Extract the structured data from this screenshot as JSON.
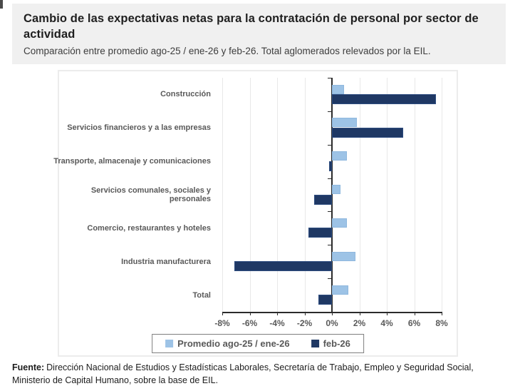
{
  "header": {
    "title": "Cambio de las expectativas netas para la contratación de personal por sector de actividad",
    "subtitle": "Comparación entre promedio ago-25 / ene-26 y feb-26. Total aglomerados relevados por la EIL."
  },
  "chart_data": {
    "type": "bar",
    "orientation": "horizontal",
    "title": "",
    "categories": [
      "Construcción",
      "Servicios financieros y a las empresas",
      "Transporte, almacenaje y comunicaciones",
      "Servicios comunales, sociales y personales",
      "Comercio, restaurantes y hoteles",
      "Industria manufacturera",
      "Total"
    ],
    "series": [
      {
        "name": "Promedio ago-25 / ene-26",
        "color": "#9DC3E6",
        "values": [
          0.9,
          1.8,
          1.1,
          0.6,
          1.1,
          1.7,
          1.2
        ]
      },
      {
        "name": "feb-26",
        "color": "#1F3864",
        "values": [
          7.6,
          5.2,
          -0.2,
          -1.3,
          -1.7,
          -7.1,
          -1.0
        ]
      }
    ],
    "xlim": [
      -8,
      8
    ],
    "xticks": [
      -8,
      -6,
      -4,
      -2,
      0,
      2,
      4,
      6,
      8
    ],
    "xtick_labels": [
      "-8%",
      "-6%",
      "-4%",
      "-2%",
      "0%",
      "2%",
      "4%",
      "6%",
      "8%"
    ],
    "grid": true,
    "legend_position": "bottom-center"
  },
  "footer": {
    "label": "Fuente:",
    "text": "Dirección Nacional de Estudios y Estadísticas Laborales, Secretaría de Trabajo, Empleo y Seguridad Social, Ministerio de Capital Humano, sobre la base de EIL."
  },
  "colors": {
    "series_light": "#9DC3E6",
    "series_dark": "#1F3864",
    "header_bg": "#f0f0f0",
    "gridline": "#e8e8e8",
    "axis": "#2b2b2b",
    "label_gray": "#595959"
  }
}
